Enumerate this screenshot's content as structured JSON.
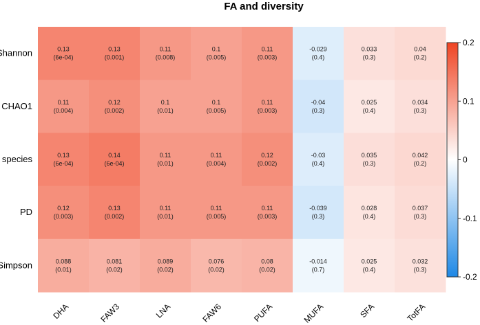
{
  "chart_data": {
    "type": "heatmap",
    "title": "FA and diversity",
    "rows": [
      "Shannon",
      "CHAO1",
      "Obs species",
      "PD",
      "Simpson"
    ],
    "columns": [
      "DHA",
      "FAW3",
      "LNA",
      "FAW6",
      "PUFA",
      "MUFA",
      "SFA",
      "TotFA"
    ],
    "values": [
      [
        0.13,
        0.13,
        0.11,
        0.1,
        0.11,
        -0.029,
        0.033,
        0.04
      ],
      [
        0.11,
        0.12,
        0.1,
        0.1,
        0.11,
        -0.04,
        0.025,
        0.034
      ],
      [
        0.13,
        0.14,
        0.11,
        0.11,
        0.12,
        -0.03,
        0.035,
        0.042
      ],
      [
        0.12,
        0.13,
        0.11,
        0.11,
        0.11,
        -0.039,
        0.028,
        0.037
      ],
      [
        0.088,
        0.081,
        0.089,
        0.076,
        0.08,
        -0.014,
        0.025,
        0.032
      ]
    ],
    "value_labels": [
      [
        "0.13",
        "0.13",
        "0.11",
        "0.1",
        "0.11",
        "-0.029",
        "0.033",
        "0.04"
      ],
      [
        "0.11",
        "0.12",
        "0.1",
        "0.1",
        "0.11",
        "-0.04",
        "0.025",
        "0.034"
      ],
      [
        "0.13",
        "0.14",
        "0.11",
        "0.11",
        "0.12",
        "-0.03",
        "0.035",
        "0.042"
      ],
      [
        "0.12",
        "0.13",
        "0.11",
        "0.11",
        "0.11",
        "-0.039",
        "0.028",
        "0.037"
      ],
      [
        "0.088",
        "0.081",
        "0.089",
        "0.076",
        "0.08",
        "-0.014",
        "0.025",
        "0.032"
      ]
    ],
    "pvalue_labels": [
      [
        "(6e-04)",
        "(0.001)",
        "(0.008)",
        "(0.005)",
        "(0.003)",
        "(0.4)",
        "(0.3)",
        "(0.2)"
      ],
      [
        "(0.004)",
        "(0.002)",
        "(0.01)",
        "(0.005)",
        "(0.003)",
        "(0.3)",
        "(0.4)",
        "(0.3)"
      ],
      [
        "(6e-04)",
        "(6e-04)",
        "(0.01)",
        "(0.004)",
        "(0.002)",
        "(0.4)",
        "(0.3)",
        "(0.2)"
      ],
      [
        "(0.003)",
        "(0.002)",
        "(0.01)",
        "(0.005)",
        "(0.003)",
        "(0.3)",
        "(0.4)",
        "(0.3)"
      ],
      [
        "(0.01)",
        "(0.02)",
        "(0.02)",
        "(0.02)",
        "(0.02)",
        "(0.7)",
        "(0.4)",
        "(0.3)"
      ]
    ],
    "color_scale": {
      "min": -0.2,
      "max": 0.2,
      "low_color": "#1e88e5",
      "mid_color": "#ffffff",
      "high_color": "#ef4423"
    },
    "legend": {
      "position": "right",
      "ticks": [
        0.2,
        0.1,
        0,
        -0.1,
        -0.2
      ],
      "tick_labels": [
        "0.2",
        "0.1",
        "0",
        "-0.1",
        "-0.2"
      ]
    }
  }
}
